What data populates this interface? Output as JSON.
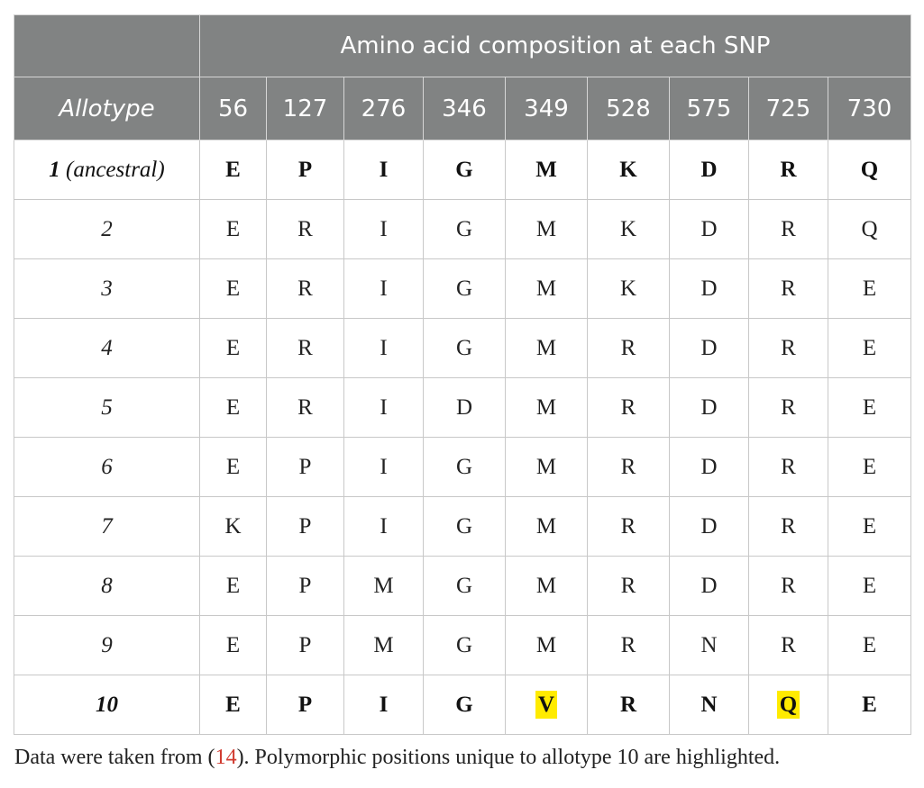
{
  "table": {
    "header_allotype": "Allotype",
    "header_group": "Amino acid composition at each SNP",
    "positions": [
      "56",
      "127",
      "276",
      "346",
      "349",
      "528",
      "575",
      "725",
      "730"
    ],
    "rows": [
      {
        "allotype": "1",
        "allotype_suffix": " (ancestral)",
        "values": [
          "E",
          "P",
          "I",
          "G",
          "M",
          "K",
          "D",
          "R",
          "Q"
        ]
      },
      {
        "allotype": "2",
        "allotype_suffix": "",
        "values": [
          "E",
          "R",
          "I",
          "G",
          "M",
          "K",
          "D",
          "R",
          "Q"
        ]
      },
      {
        "allotype": "3",
        "allotype_suffix": "",
        "values": [
          "E",
          "R",
          "I",
          "G",
          "M",
          "K",
          "D",
          "R",
          "E"
        ]
      },
      {
        "allotype": "4",
        "allotype_suffix": "",
        "values": [
          "E",
          "R",
          "I",
          "G",
          "M",
          "R",
          "D",
          "R",
          "E"
        ]
      },
      {
        "allotype": "5",
        "allotype_suffix": "",
        "values": [
          "E",
          "R",
          "I",
          "D",
          "M",
          "R",
          "D",
          "R",
          "E"
        ]
      },
      {
        "allotype": "6",
        "allotype_suffix": "",
        "values": [
          "E",
          "P",
          "I",
          "G",
          "M",
          "R",
          "D",
          "R",
          "E"
        ]
      },
      {
        "allotype": "7",
        "allotype_suffix": "",
        "values": [
          "K",
          "P",
          "I",
          "G",
          "M",
          "R",
          "D",
          "R",
          "E"
        ]
      },
      {
        "allotype": "8",
        "allotype_suffix": "",
        "values": [
          "E",
          "P",
          "M",
          "G",
          "M",
          "R",
          "D",
          "R",
          "E"
        ]
      },
      {
        "allotype": "9",
        "allotype_suffix": "",
        "values": [
          "E",
          "P",
          "M",
          "G",
          "M",
          "R",
          "N",
          "R",
          "E"
        ]
      },
      {
        "allotype": "10",
        "allotype_suffix": "",
        "values": [
          "E",
          "P",
          "I",
          "G",
          "V",
          "R",
          "N",
          "Q",
          "E"
        ]
      }
    ],
    "bold_rows": [
      0,
      9
    ],
    "highlighted_cells": [
      [
        9,
        4
      ],
      [
        9,
        7
      ]
    ],
    "header_bg": "#818383",
    "highlight_color": "#ffeb00"
  },
  "footnote": {
    "before": "Data were taken from (",
    "ref": "14",
    "after": "). Polymorphic positions unique to allotype 10 are highlighted."
  }
}
